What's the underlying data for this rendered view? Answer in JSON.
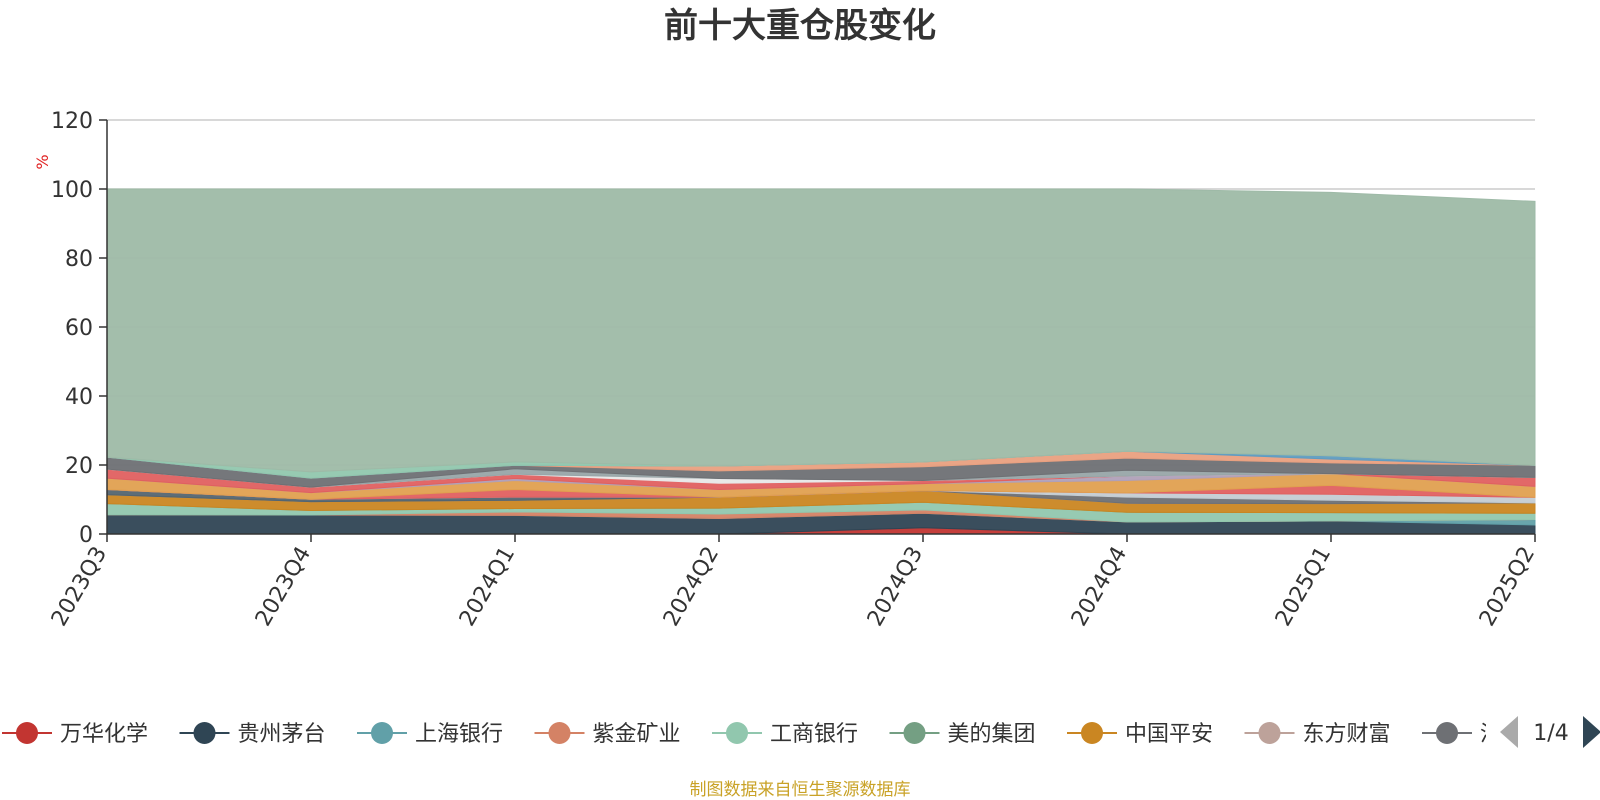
{
  "chart_data": {
    "type": "area",
    "stacked": true,
    "title": "前十大重仓股变化",
    "y_unit": "%",
    "ylim": [
      0,
      120
    ],
    "y_ticks": [
      0,
      20,
      40,
      60,
      80,
      100,
      120
    ],
    "grid": true,
    "categories": [
      "2023Q3",
      "2023Q4",
      "2024Q1",
      "2024Q2",
      "2024Q3",
      "2024Q4",
      "2025Q1",
      "2025Q2"
    ],
    "series": [
      {
        "name": "万华化学",
        "color": "#c23531",
        "values": [
          0.0,
          0.0,
          0.0,
          0.0,
          1.8,
          0.0,
          0.0,
          0.0
        ]
      },
      {
        "name": "贵州茅台",
        "color": "#2f4554",
        "values": [
          5.6,
          5.5,
          5.4,
          4.5,
          4.2,
          3.5,
          3.8,
          2.6
        ]
      },
      {
        "name": "上海银行",
        "color": "#61a0a8",
        "values": [
          0.0,
          0.0,
          0.0,
          0.0,
          0.0,
          0.0,
          0.0,
          1.6
        ]
      },
      {
        "name": "紫金矿业",
        "color": "#d48265",
        "values": [
          0.0,
          0.0,
          1.0,
          1.3,
          1.0,
          0.0,
          0.0,
          0.0
        ]
      },
      {
        "name": "工商银行",
        "color": "#91c7ae",
        "values": [
          3.2,
          1.3,
          1.0,
          1.7,
          2.2,
          2.8,
          2.4,
          1.8
        ]
      },
      {
        "name": "美的集团",
        "color": "#749f83",
        "values": [
          0.0,
          0.0,
          0.0,
          0.0,
          0.0,
          0.0,
          0.0,
          0.0
        ]
      },
      {
        "name": "中国平安",
        "color": "#ca8622",
        "values": [
          2.6,
          2.6,
          2.4,
          3.2,
          3.4,
          2.6,
          2.6,
          3.0
        ]
      },
      {
        "name": "东方财富",
        "color": "#bda29a",
        "values": [
          0.0,
          0.0,
          0.0,
          0.0,
          0.0,
          0.0,
          0.0,
          0.0
        ]
      },
      {
        "color": "#6e7074",
        "values": [
          0.0,
          0.0,
          0.0,
          0.0,
          0.0,
          1.8,
          1.0,
          0.0
        ]
      },
      {
        "color": "#546570",
        "values": [
          1.5,
          0.7,
          0.9,
          0.0,
          0.0,
          0.0,
          0.0,
          0.0
        ]
      },
      {
        "color": "#c4ccd3",
        "values": [
          0.0,
          0.0,
          0.0,
          0.0,
          0.0,
          1.2,
          1.7,
          1.6
        ]
      },
      {
        "color": "#e06060",
        "values": [
          0.0,
          0.0,
          2.2,
          0.0,
          0.0,
          0.0,
          2.6,
          0.0
        ]
      },
      {
        "color": "#e0a050",
        "values": [
          3.3,
          1.9,
          2.6,
          2.2,
          2.0,
          3.6,
          3.4,
          3.2
        ]
      },
      {
        "color": "#b0a0b8",
        "values": [
          0.0,
          0.0,
          0.6,
          0.0,
          0.0,
          1.3,
          0.0,
          0.0
        ]
      },
      {
        "color": "#e06060",
        "values": [
          2.6,
          1.6,
          1.2,
          1.8,
          0.9,
          0.0,
          0.0,
          2.6
        ]
      },
      {
        "color": "#e8e8e8",
        "values": [
          0.0,
          0.0,
          0.0,
          1.4,
          0.0,
          0.0,
          0.0,
          0.0
        ]
      },
      {
        "color": "#98a5a8",
        "values": [
          0.0,
          0.0,
          1.6,
          0.0,
          0.0,
          1.7,
          0.0,
          0.0
        ]
      },
      {
        "color": "#6e7074",
        "values": [
          3.5,
          2.6,
          1.0,
          2.2,
          4.0,
          3.5,
          3.1,
          3.5
        ]
      },
      {
        "color": "#e9a080",
        "values": [
          0.0,
          0.0,
          0.0,
          1.4,
          1.4,
          2.0,
          1.1,
          0.0
        ]
      },
      {
        "color": "#5f9cc0",
        "values": [
          0.0,
          0.0,
          0.0,
          0.0,
          0.0,
          0.0,
          1.0,
          0.0
        ]
      },
      {
        "color": "#91c7ae",
        "values": [
          0.0,
          1.8,
          1.0,
          0.0,
          0.0,
          0.0,
          0.0,
          0.0
        ]
      },
      {
        "color": "#9ebaa7",
        "values": [
          77.7,
          82.0,
          79.1,
          80.3,
          79.1,
          76.0,
          76.3,
          76.5
        ]
      }
    ]
  },
  "legend": {
    "items": [
      {
        "label": "万华化学",
        "color": "#c23531"
      },
      {
        "label": "贵州茅台",
        "color": "#2f4554"
      },
      {
        "label": "上海银行",
        "color": "#61a0a8"
      },
      {
        "label": "紫金矿业",
        "color": "#d48265"
      },
      {
        "label": "工商银行",
        "color": "#91c7ae"
      },
      {
        "label": "美的集团",
        "color": "#749f83"
      },
      {
        "label": "中国平安",
        "color": "#ca8622"
      },
      {
        "label": "东方财富",
        "color": "#bda29a"
      },
      {
        "label": "",
        "color": "#6e7074"
      }
    ],
    "cut_off_glyph": "汽",
    "page_indicator": "1/4"
  },
  "source_note": "制图数据来自恒生聚源数据库"
}
